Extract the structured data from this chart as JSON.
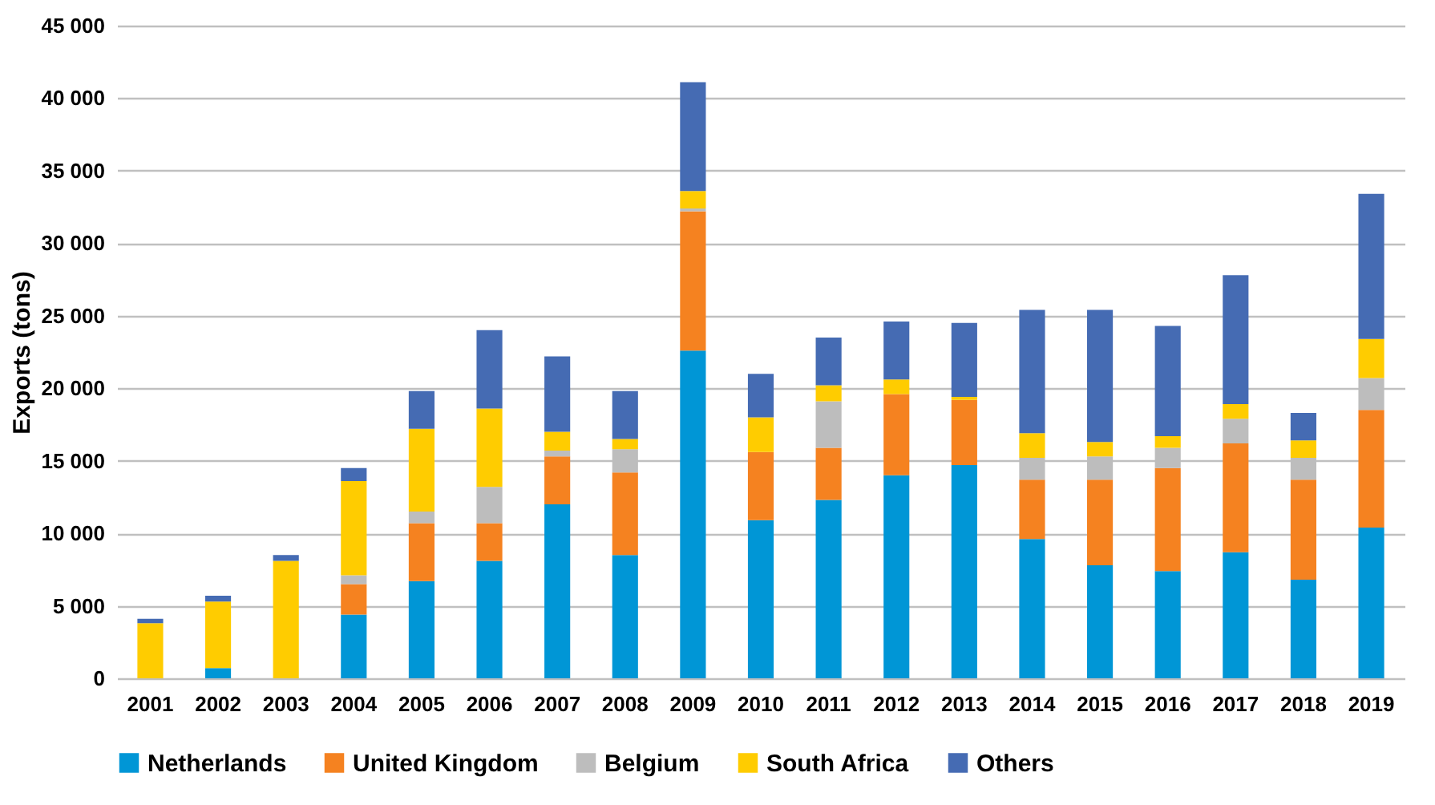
{
  "chart_data": {
    "type": "bar",
    "stacked": true,
    "ylabel": "Exports (tons)",
    "categories": [
      "2001",
      "2002",
      "2003",
      "2004",
      "2005",
      "2006",
      "2007",
      "2008",
      "2009",
      "2010",
      "2011",
      "2012",
      "2013",
      "2014",
      "2015",
      "2016",
      "2017",
      "2018",
      "2019"
    ],
    "series": [
      {
        "name": "Netherlands",
        "color": "#0096d6",
        "values": [
          0,
          700,
          0,
          4400,
          6700,
          8100,
          12000,
          8500,
          22600,
          10900,
          12300,
          14000,
          14700,
          9600,
          7800,
          7400,
          8700,
          6800,
          10400
        ]
      },
      {
        "name": "United Kingdom",
        "color": "#f58220",
        "values": [
          0,
          0,
          0,
          2100,
          4000,
          2600,
          3300,
          5700,
          9600,
          4700,
          3600,
          5600,
          4500,
          4100,
          5900,
          7100,
          7500,
          6900,
          8100
        ]
      },
      {
        "name": "Belgium",
        "color": "#bdbdbd",
        "values": [
          0,
          0,
          0,
          600,
          800,
          2500,
          400,
          1600,
          200,
          0,
          3200,
          0,
          0,
          1500,
          1600,
          1400,
          1700,
          1500,
          2200
        ]
      },
      {
        "name": "South Africa",
        "color": "#ffcc00",
        "values": [
          3800,
          4600,
          8100,
          6500,
          5700,
          5400,
          1300,
          700,
          1200,
          2400,
          1100,
          1000,
          200,
          1700,
          1000,
          800,
          1000,
          1200,
          2700
        ]
      },
      {
        "name": "Others",
        "color": "#456bb3",
        "values": [
          300,
          400,
          400,
          900,
          2600,
          5400,
          5200,
          3300,
          7500,
          3000,
          3300,
          4000,
          5100,
          8500,
          9100,
          7600,
          8900,
          1900,
          10000
        ]
      }
    ],
    "ylim": [
      0,
      45000
    ],
    "yticks": [
      0,
      {
        "value": 5000,
        "label": "5 000"
      },
      {
        "value": 10000,
        "label": "10 000"
      },
      {
        "value": 15000,
        "label": "15 000"
      },
      {
        "value": 20000,
        "label": "20 000"
      },
      {
        "value": 25000,
        "label": "25 000"
      },
      {
        "value": 30000,
        "label": "30 000"
      },
      {
        "value": 35000,
        "label": "35 000"
      },
      {
        "value": 40000,
        "label": "40 000"
      },
      {
        "value": 45000,
        "label": "45 000"
      }
    ],
    "grid": "y",
    "legend": "bottom"
  }
}
